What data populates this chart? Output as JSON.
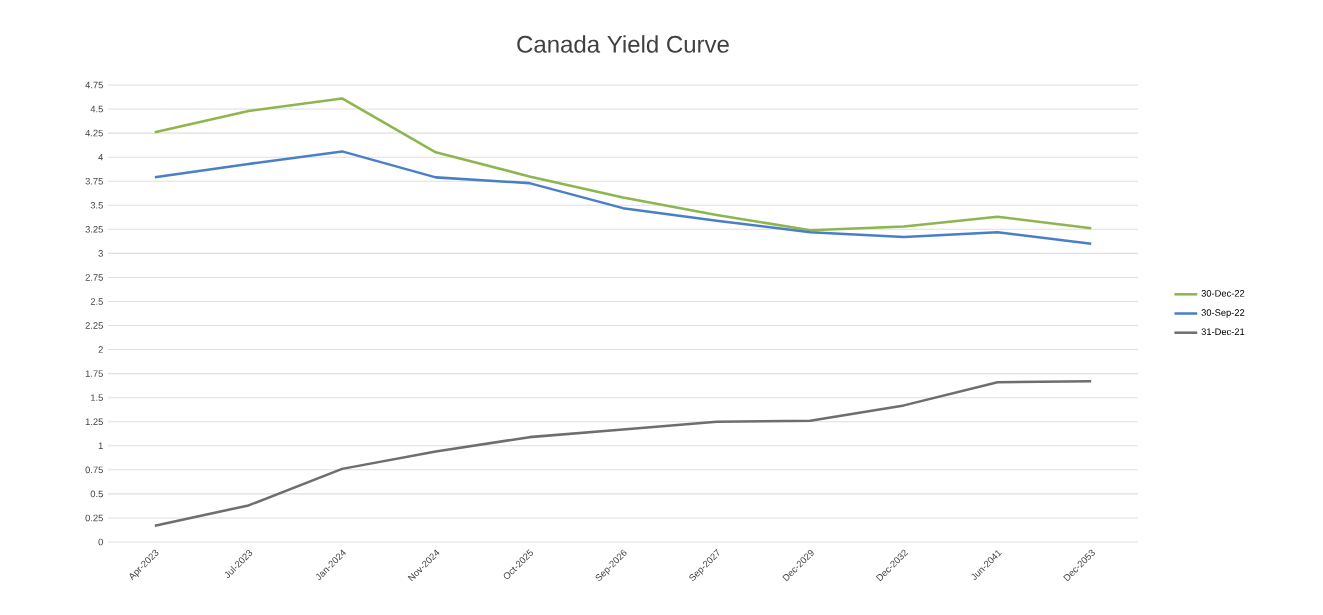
{
  "chart_data": {
    "type": "line",
    "title": "Canada Yield Curve",
    "categories": [
      "Apr-2023",
      "Jul-2023",
      "Jan-2024",
      "Nov-2024",
      "Oct-2025",
      "Sep-2026",
      "Sep-2027",
      "Dec-2029",
      "Dec-2032",
      "Jun-2041",
      "Dec-2053"
    ],
    "series": [
      {
        "name": "30-Dec-22",
        "color": "#8db64e",
        "values": [
          4.26,
          4.48,
          4.61,
          4.05,
          3.8,
          3.58,
          3.4,
          3.24,
          3.28,
          3.38,
          3.26
        ]
      },
      {
        "name": "30-Sep-22",
        "color": "#4a7fc8",
        "values": [
          3.79,
          3.93,
          4.06,
          3.79,
          3.73,
          3.47,
          3.34,
          3.22,
          3.17,
          3.22,
          3.1
        ]
      },
      {
        "name": "31-Dec-21",
        "color": "#6e6e6e",
        "values": [
          0.17,
          0.38,
          0.76,
          0.94,
          1.09,
          1.17,
          1.25,
          1.26,
          1.42,
          1.66,
          1.67
        ]
      }
    ],
    "ylim": [
      0,
      4.75
    ],
    "yticks": [
      0,
      0.25,
      0.5,
      0.75,
      1,
      1.25,
      1.5,
      1.75,
      2,
      2.25,
      2.5,
      2.75,
      3,
      3.25,
      3.5,
      3.75,
      4,
      4.25,
      4.5,
      4.75
    ],
    "grid": "y",
    "legend": "right",
    "marker": "none",
    "line_style": "solid"
  }
}
